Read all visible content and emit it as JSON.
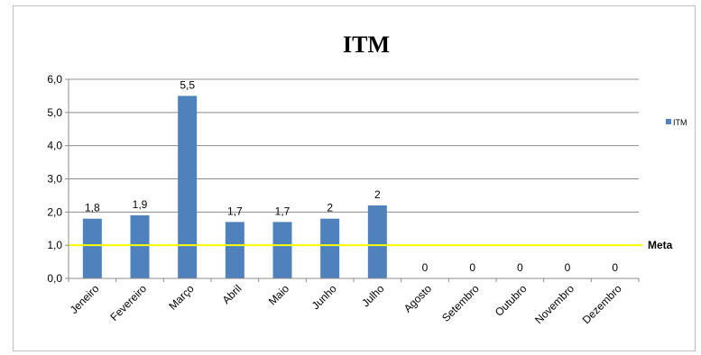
{
  "chart_data": {
    "type": "bar",
    "title": "ITM",
    "categories": [
      "Jeneiro",
      "Fevereiro",
      "Março",
      "Abril",
      "Maio",
      "Junho",
      "Julho",
      "Agosto",
      "Setembro",
      "Outubro",
      "Novembro",
      "Dezembro"
    ],
    "series": [
      {
        "name": "ITM",
        "values": [
          1.8,
          1.9,
          5.5,
          1.7,
          1.7,
          1.8,
          2.2,
          0,
          0,
          0,
          0,
          0
        ],
        "data_labels": [
          "1,8",
          "1,9",
          "5,5",
          "1,7",
          "1,7",
          "2",
          "2",
          "0",
          "0",
          "0",
          "0",
          "0"
        ],
        "color": "#4f81bd"
      }
    ],
    "ylim": [
      0,
      6
    ],
    "y_ticks": [
      "0,0",
      "1,0",
      "2,0",
      "3,0",
      "4,0",
      "5,0",
      "6,0"
    ],
    "grid": true,
    "legend": {
      "position": "right",
      "label": "ITM"
    },
    "reference_line": {
      "label": "Meta",
      "value": 1.0,
      "color": "#ffff00"
    }
  }
}
